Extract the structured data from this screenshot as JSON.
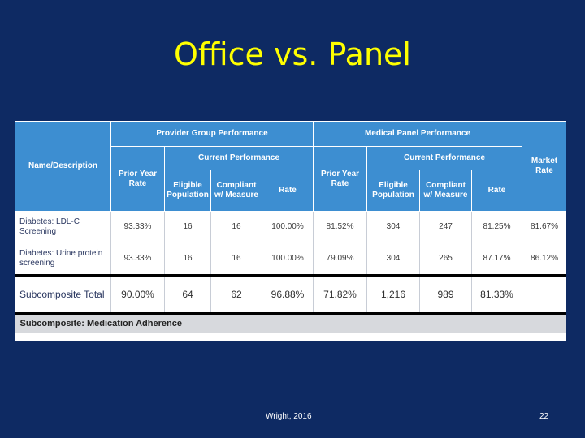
{
  "slide": {
    "title": "Office vs. Panel",
    "footer_author": "Wright, 2016",
    "page_number": "22"
  },
  "table": {
    "name_header": "Name/Description",
    "group_provider": "Provider Group Performance",
    "group_panel": "Medical Panel Performance",
    "current_performance": "Current Performance",
    "prior_year_rate": "Prior Year Rate",
    "eligible_population": "Eligible Population",
    "compliant_measure": "Compliant w/ Measure",
    "rate": "Rate",
    "market_rate": "Market Rate",
    "rows": [
      {
        "name": "Diabetes: LDL-C Screening",
        "provider": [
          "93.33%",
          "16",
          "16",
          "100.00%"
        ],
        "panel": [
          "81.52%",
          "304",
          "247",
          "81.25%"
        ],
        "market": "81.67%"
      },
      {
        "name": "Diabetes: Urine protein screening",
        "provider": [
          "93.33%",
          "16",
          "16",
          "100.00%"
        ],
        "panel": [
          "79.09%",
          "304",
          "265",
          "87.17%"
        ],
        "market": "86.12%"
      }
    ],
    "subtotal": {
      "name": "Subcomposite Total",
      "provider": [
        "90.00%",
        "64",
        "62",
        "96.88%"
      ],
      "panel": [
        "71.82%",
        "1,216",
        "989",
        "81.33%"
      ],
      "market": ""
    },
    "section_label": "Subcomposite: Medication Adherence"
  }
}
